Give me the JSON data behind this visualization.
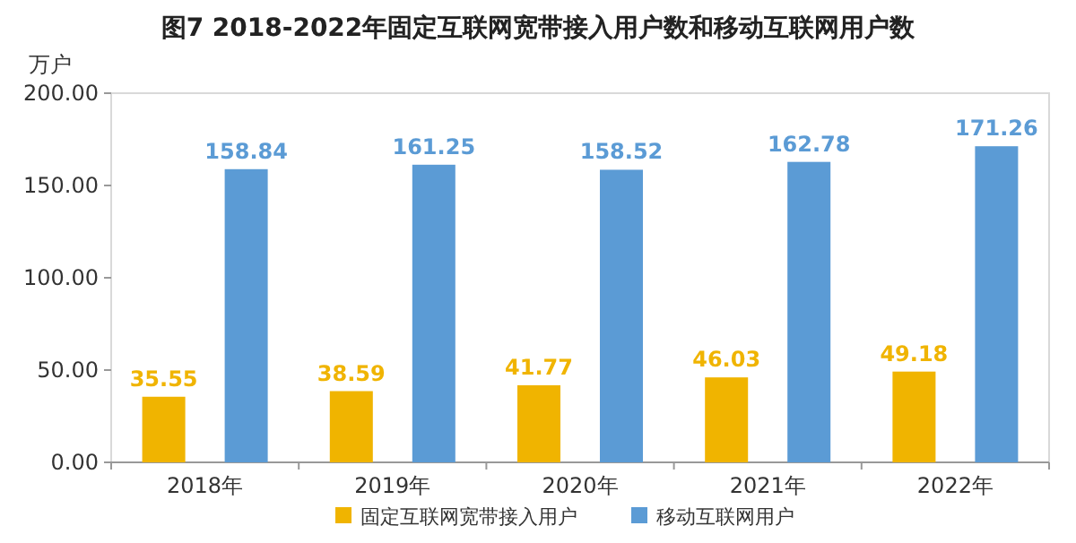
{
  "chart_data": {
    "type": "bar",
    "title": "图7 2018-2022年固定互联网宽带接入用户数和移动互联网用户数",
    "ylabel": "万户",
    "categories": [
      "2018年",
      "2019年",
      "2020年",
      "2021年",
      "2022年"
    ],
    "series": [
      {
        "name": "固定互联网宽带接入用户",
        "color": "#f0b400",
        "values": [
          35.55,
          38.59,
          41.77,
          46.03,
          49.18
        ]
      },
      {
        "name": "移动互联网用户",
        "color": "#5b9bd5",
        "values": [
          158.84,
          161.25,
          158.52,
          162.78,
          171.26
        ]
      }
    ],
    "ylim": [
      0,
      200
    ],
    "yticks": [
      {
        "value": 0,
        "label": "0.00"
      },
      {
        "value": 50,
        "label": "50.00"
      },
      {
        "value": 100,
        "label": "100.00"
      },
      {
        "value": 150,
        "label": "150.00"
      },
      {
        "value": 200,
        "label": "200.00"
      }
    ],
    "data_labels": true,
    "legend": "bottom"
  }
}
